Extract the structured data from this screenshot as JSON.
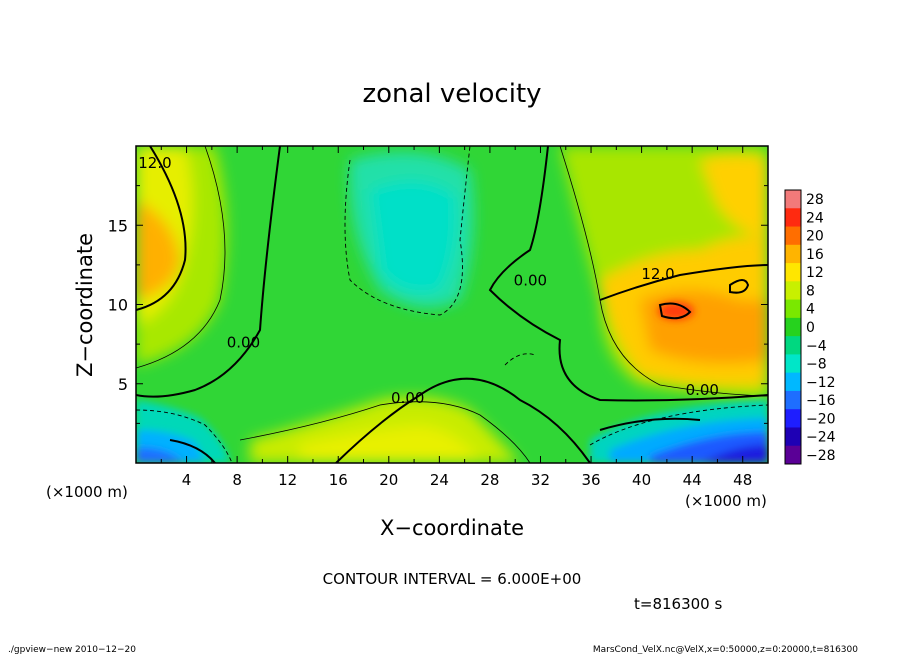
{
  "chart_data": {
    "type": "contour",
    "title": "zonal velocity",
    "xlabel": "X−coordinate",
    "ylabel": "Z−coordinate",
    "x_unit": "(×1000 m)",
    "y_unit": "(×1000 m)",
    "xlim": [
      0,
      50
    ],
    "ylim": [
      0,
      20
    ],
    "x_ticks": [
      "4",
      "8",
      "12",
      "16",
      "20",
      "24",
      "28",
      "32",
      "36",
      "40",
      "44",
      "48"
    ],
    "x_tick_values": [
      4,
      8,
      12,
      16,
      20,
      24,
      28,
      32,
      36,
      40,
      44,
      48
    ],
    "y_ticks": [
      "5",
      "10",
      "15"
    ],
    "y_tick_values": [
      5,
      10,
      15
    ],
    "contour_interval": "CONTOUR INTERVAL = 6.000E+00",
    "contour_labels": [
      {
        "text": "12.0",
        "x": 1.5,
        "z": 18.6
      },
      {
        "text": "0.00",
        "x": 8.5,
        "z": 7.3
      },
      {
        "text": "0.00",
        "x": 21.5,
        "z": 3.8
      },
      {
        "text": "0.00",
        "x": 31.2,
        "z": 11.2
      },
      {
        "text": "0.00",
        "x": 44.8,
        "z": 4.3
      },
      {
        "text": "12.0",
        "x": 41.3,
        "z": 11.6
      }
    ],
    "colorbar": {
      "labels": [
        "28",
        "24",
        "20",
        "16",
        "12",
        "8",
        "4",
        "0",
        "−4",
        "−8",
        "−12",
        "−16",
        "−20",
        "−24",
        "−28"
      ],
      "values": [
        28,
        24,
        20,
        16,
        12,
        8,
        4,
        0,
        -4,
        -8,
        -12,
        -16,
        -20,
        -24,
        -28
      ],
      "colors": [
        "#f27a7a",
        "#ff2a10",
        "#ff6e00",
        "#ffb400",
        "#ffe600",
        "#c8f000",
        "#7ae800",
        "#26d21e",
        "#00d880",
        "#00e6c8",
        "#00b8ff",
        "#1e6eff",
        "#1e1eff",
        "#1e00b4",
        "#5a0096"
      ]
    },
    "time_label": "t=816300 s",
    "footer_left": "./gpview−new  2010−12−20",
    "footer_right": "MarsCond_VelX.nc@VelX,x=0:50000,z=0:20000,t=816300"
  }
}
